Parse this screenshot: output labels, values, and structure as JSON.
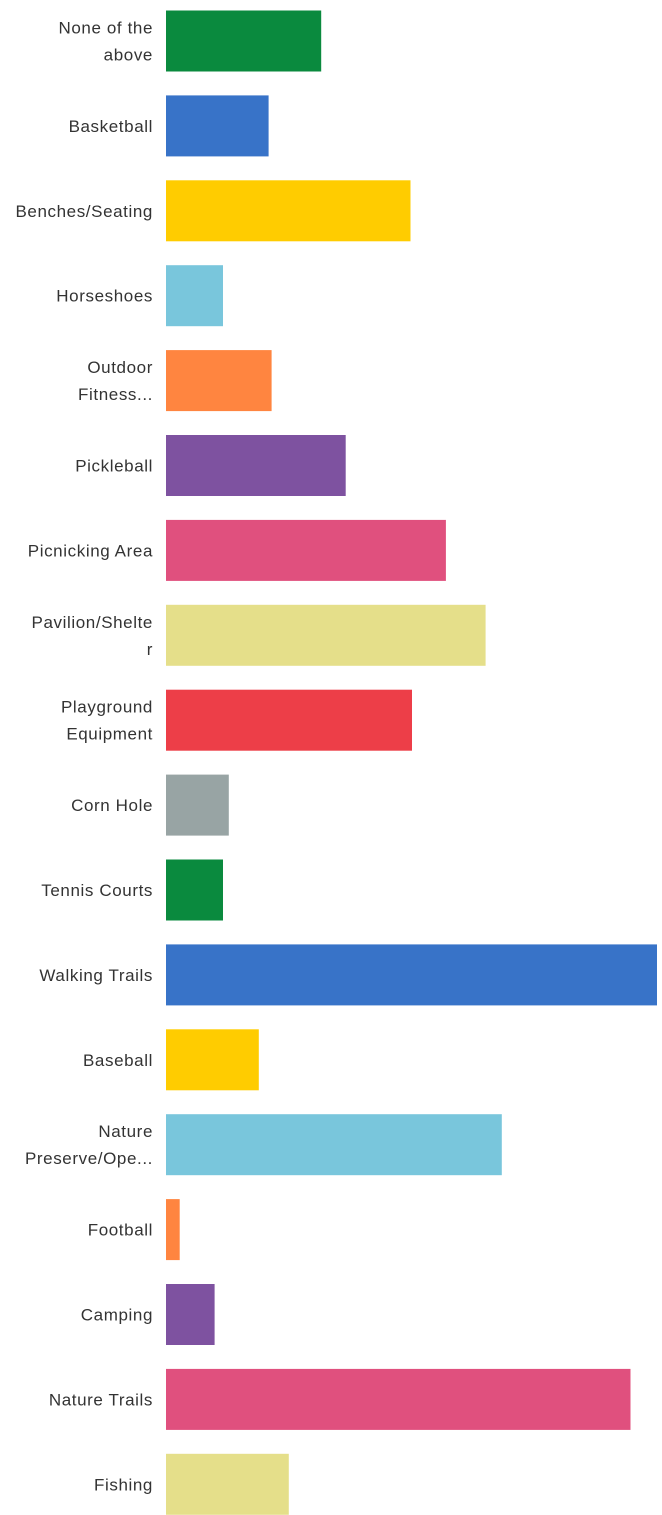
{
  "chart_data": {
    "type": "bar",
    "orientation": "horizontal",
    "categories": [
      [
        "None of the",
        "above"
      ],
      [
        "Basketball"
      ],
      [
        "Benches/Seating"
      ],
      [
        "Horseshoes"
      ],
      [
        "Outdoor",
        "Fitness..."
      ],
      [
        "Pickleball"
      ],
      [
        "Picnicking Area"
      ],
      [
        "Pavilion/Shelte",
        "r"
      ],
      [
        "Playground",
        "Equipment"
      ],
      [
        "Corn Hole"
      ],
      [
        "Tennis Courts"
      ],
      [
        "Walking Trails"
      ],
      [
        "Baseball"
      ],
      [
        "Nature",
        "Preserve/Ope..."
      ],
      [
        "Football"
      ],
      [
        "Camping"
      ],
      [
        "Nature Trails"
      ],
      [
        "Fishing"
      ]
    ],
    "values": [
      31.6,
      20.9,
      49.8,
      11.6,
      21.5,
      36.6,
      57.0,
      65.1,
      50.1,
      12.8,
      11.6,
      100,
      18.9,
      68.4,
      2.8,
      9.9,
      94.6,
      25.0
    ],
    "colors": [
      "#0a8a3e",
      "#3873c8",
      "#ffcc00",
      "#79c6dc",
      "#ff8540",
      "#7e52a0",
      "#e0507e",
      "#e5df8a",
      "#ed3e48",
      "#98a4a4",
      "#0a8a3e",
      "#3873c8",
      "#ffcc00",
      "#79c6dc",
      "#ff8540",
      "#7e52a0",
      "#e0507e",
      "#e5df8a"
    ],
    "xlim": [
      0,
      100
    ],
    "grid": false,
    "title": "",
    "xlabel": "",
    "ylabel": ""
  }
}
